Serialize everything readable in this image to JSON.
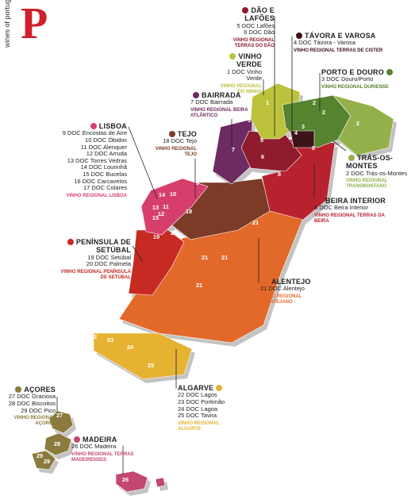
{
  "logo": {
    "text": "wines of portugal",
    "letter": "P"
  },
  "regions": [
    {
      "name": "DÃO E LAFÕES",
      "docs": [
        "5 DOC Lafões",
        "6 DOC Dão"
      ],
      "vinho_regional": "VINHO REGIONAL TERRAS DO DÃO",
      "color": "#8e1c2c"
    },
    {
      "name": "TÁVORA E VAROSA",
      "docs": [
        "4 DOC Távora - Varosa"
      ],
      "vinho_regional": "VINHO REGIONAL TERRAS DE CISTER",
      "color": "#3d1418"
    },
    {
      "name": "VINHO VERDE",
      "docs": [
        "1 DOC Vinho Verde"
      ],
      "vinho_regional": "VINHO REGIONAL DO MINHO",
      "color": "#bcc23c"
    },
    {
      "name": "PORTO E DOURO",
      "docs": [
        "3 DOC Douro/Porto"
      ],
      "vinho_regional": "VINHO REGIONAL DURIENSE",
      "color": "#55832f"
    },
    {
      "name": "BAIRRADA",
      "docs": [
        "7 DOC Bairrada"
      ],
      "vinho_regional": "VINHO REGIONAL BEIRA ATLÂNTICO",
      "color": "#6e2b62"
    },
    {
      "name": "LISBOA",
      "docs": [
        "9 DOC Encostas de Aire",
        "10 DOC Óbidos",
        "11 DOC Alenquer",
        "12 DOC Arruda",
        "13 DOC Torres Vedras",
        "14 DOC Lourinhã",
        "15 DOC Bucelas",
        "16 DOC Carcavelos",
        "17 DOC Colares"
      ],
      "vinho_regional": "VINHO REGIONAL LISBOA",
      "color": "#d63f6c"
    },
    {
      "name": "TEJO",
      "docs": [
        "18 DOC Tejo"
      ],
      "vinho_regional": "VINHO REGIONAL TEJO",
      "color": "#7b3b27"
    },
    {
      "name": "TRÁS-OS-MONTES",
      "docs": [
        "2 DOC Trás-os-Montes"
      ],
      "vinho_regional": "VINHO REGIONAL TRANSMONTANO",
      "color": "#93b04a"
    },
    {
      "name": "BEIRA INTERIOR",
      "docs": [
        "8 DOC Beira Interior"
      ],
      "vinho_regional": "VINHO REGIONAL TERRAS DA BEIRA",
      "color": "#b8222e"
    },
    {
      "name": "PENÍNSULA DE SETÚBAL",
      "docs": [
        "19 DOC Setúbal",
        "20 DOC Palmela"
      ],
      "vinho_regional": "VINHO REGIONAL PENÍNSULA DE SETÚBAL",
      "color": "#c72a22"
    },
    {
      "name": "ALENTEJO",
      "docs": [
        "21 DOC Alentejo"
      ],
      "vinho_regional": "VINHO REGIONAL ALENTEJANO",
      "color": "#e2692a"
    },
    {
      "name": "ALGARVE",
      "docs": [
        "22 DOC Lagos",
        "23 DOC Portimão",
        "24 DOC Lagoa",
        "25 DOC Tavira"
      ],
      "vinho_regional": "VINHO REGIONAL ALGARVE",
      "color": "#e5b232"
    },
    {
      "name": "AÇORES",
      "docs": [
        "27 DOC Graciosa",
        "28 DOC Biscoitos",
        "29 DOC Pico"
      ],
      "vinho_regional": "VINHO REGIONAL AÇORES",
      "color": "#8a7a3c"
    },
    {
      "name": "MADEIRA",
      "docs": [
        "26 DOC Madeira"
      ],
      "vinho_regional": "VINHO REGIONAL TERRAS MADEIRENSES",
      "color": "#c2486f"
    }
  ],
  "map_numbers": [
    "1",
    "2",
    "2",
    "2",
    "3",
    "3",
    "4",
    "5",
    "6",
    "7",
    "8",
    "8",
    "9",
    "10",
    "11",
    "12",
    "13",
    "14",
    "15",
    "16",
    "17",
    "18",
    "19",
    "20",
    "21",
    "21",
    "21",
    "21",
    "22",
    "23",
    "24",
    "25",
    "26",
    "27",
    "28",
    "29",
    "29"
  ]
}
